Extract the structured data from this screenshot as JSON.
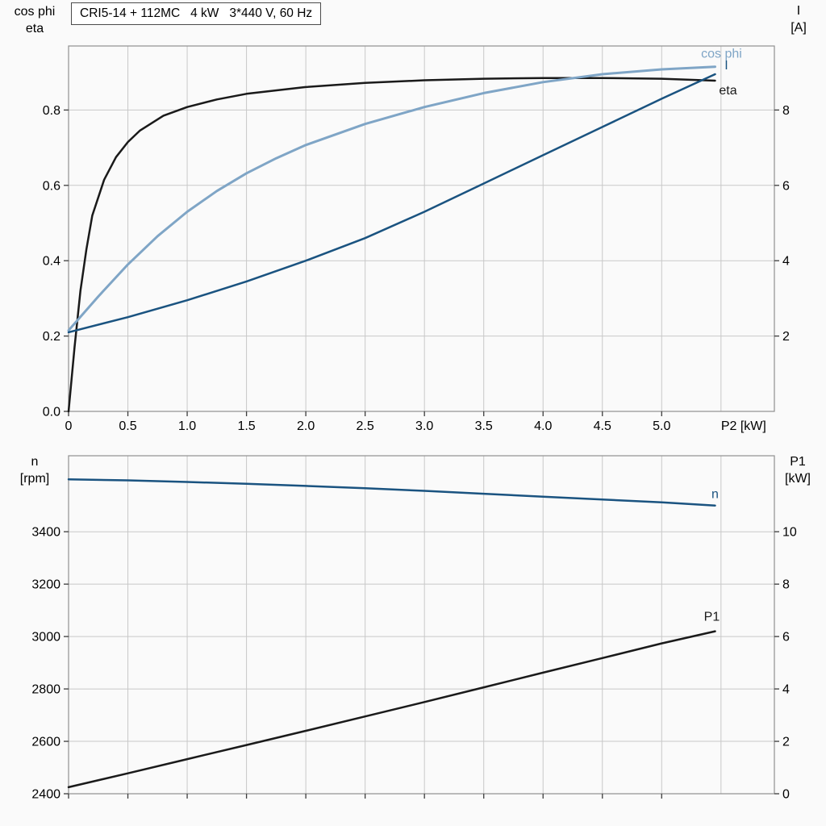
{
  "window": {
    "background": "#fafafa"
  },
  "colors": {
    "black": "#1a1a1a",
    "dark_blue": "#1a5380",
    "light_blue": "#7fa5c6",
    "grid": "#c8c8c8",
    "frame": "#8f8f8f",
    "tick": "#3c3c3c",
    "text": "#000000",
    "title_border": "#4b4b4b",
    "title_bg": "#ffffff"
  },
  "chart_data": [
    {
      "type": "line",
      "title": "CRI5-14 + 112MC   4 kW   3*440 V, 60 Hz",
      "left_axis": {
        "title_lines": [
          "cos phi",
          "eta"
        ],
        "lim": [
          0,
          0.97
        ],
        "ticks": [
          0,
          0.2,
          0.4,
          0.6,
          0.8
        ],
        "tick_labels": [
          "0.0",
          "0.2",
          "0.4",
          "0.6",
          "0.8"
        ],
        "grid_ticks": [
          0.2,
          0.4,
          0.6,
          0.8
        ]
      },
      "right_axis": {
        "title_lines": [
          "I",
          "[A]"
        ],
        "lim": [
          0,
          9.7
        ],
        "ticks": [
          2,
          4,
          6,
          8
        ],
        "tick_labels": [
          "2",
          "4",
          "6",
          "8"
        ]
      },
      "x_axis": {
        "label": "P2 [kW]",
        "lim": [
          0,
          5.95
        ],
        "ticks": [
          0,
          0.5,
          1,
          1.5,
          2,
          2.5,
          3,
          3.5,
          4,
          4.5,
          5
        ],
        "tick_labels": [
          "0",
          "0.5",
          "1.0",
          "1.5",
          "2.0",
          "2.5",
          "3.0",
          "3.5",
          "4.0",
          "4.5",
          "5.0"
        ],
        "grid_ticks": [
          0.5,
          1,
          1.5,
          2,
          2.5,
          3,
          3.5,
          4,
          4.5,
          5,
          5.5
        ],
        "label_x_value": 5.5
      },
      "grid": true,
      "legend": "curve-end-labels",
      "series": [
        {
          "name": "eta",
          "label": "eta",
          "axis": "left",
          "color": "#1a1a1a",
          "width": 2.5,
          "label_dx": 16,
          "label_dy": 17,
          "label_anchor": "middle",
          "x": [
            0,
            0.05,
            0.1,
            0.15,
            0.2,
            0.3,
            0.4,
            0.5,
            0.6,
            0.8,
            1.0,
            1.25,
            1.5,
            2.0,
            2.5,
            3.0,
            3.5,
            4.0,
            4.5,
            5.0,
            5.45
          ],
          "y": [
            0,
            0.17,
            0.32,
            0.43,
            0.52,
            0.615,
            0.675,
            0.715,
            0.745,
            0.785,
            0.808,
            0.828,
            0.843,
            0.861,
            0.872,
            0.879,
            0.883,
            0.885,
            0.885,
            0.883,
            0.878
          ]
        },
        {
          "name": "cos phi",
          "label": "cos phi",
          "axis": "left",
          "color": "#7fa5c6",
          "width": 3,
          "label_dx": 8,
          "label_dy": -11,
          "label_anchor": "middle",
          "x": [
            0,
            0.25,
            0.5,
            0.75,
            1.0,
            1.25,
            1.5,
            1.75,
            2.0,
            2.5,
            3.0,
            3.5,
            4.0,
            4.5,
            5.0,
            5.45
          ],
          "y": [
            0.215,
            0.305,
            0.39,
            0.465,
            0.53,
            0.585,
            0.632,
            0.672,
            0.707,
            0.763,
            0.808,
            0.845,
            0.874,
            0.895,
            0.908,
            0.915
          ]
        },
        {
          "name": "I",
          "label": "I",
          "axis": "right",
          "color": "#1a5380",
          "width": 2.5,
          "label_dx": 14,
          "label_dy": -6,
          "label_anchor": "middle",
          "x": [
            0,
            0.5,
            1.0,
            1.5,
            2.0,
            2.5,
            3.0,
            3.5,
            4.0,
            4.5,
            5.0,
            5.45
          ],
          "y": [
            2.1,
            2.5,
            2.95,
            3.45,
            4.0,
            4.6,
            5.3,
            6.05,
            6.8,
            7.55,
            8.3,
            8.95
          ]
        }
      ]
    },
    {
      "type": "line",
      "title": "",
      "left_axis": {
        "title_lines": [
          "n",
          "[rpm]"
        ],
        "lim": [
          2400,
          3690
        ],
        "ticks": [
          2400,
          2600,
          2800,
          3000,
          3200,
          3400
        ],
        "tick_labels": [
          "2400",
          "2600",
          "2800",
          "3000",
          "3200",
          "3400"
        ],
        "grid_ticks": [
          2600,
          2800,
          3000,
          3200,
          3400
        ]
      },
      "right_axis": {
        "title_lines": [
          "P1",
          "[kW]"
        ],
        "lim": [
          0,
          12.9
        ],
        "ticks": [
          0,
          2,
          4,
          6,
          8,
          10
        ],
        "tick_labels": [
          "0",
          "2",
          "4",
          "6",
          "8",
          "10"
        ]
      },
      "x_axis": {
        "label": "",
        "lim": [
          0,
          5.95
        ],
        "ticks": [
          0,
          0.5,
          1,
          1.5,
          2,
          2.5,
          3,
          3.5,
          4,
          4.5,
          5
        ],
        "tick_labels": [],
        "grid_ticks": [
          0.5,
          1,
          1.5,
          2,
          2.5,
          3,
          3.5,
          4,
          4.5,
          5,
          5.5
        ],
        "label_x_value": 5.5
      },
      "grid": true,
      "legend": "curve-end-labels",
      "series": [
        {
          "name": "n",
          "label": "n",
          "axis": "left",
          "color": "#1a5380",
          "width": 2.5,
          "label_dx": 0,
          "label_dy": -9,
          "label_anchor": "middle",
          "x": [
            0,
            0.5,
            1,
            1.5,
            2,
            2.5,
            3,
            3.5,
            4,
            4.5,
            5,
            5.45
          ],
          "y": [
            3600,
            3596,
            3590,
            3583,
            3575,
            3566,
            3556,
            3545,
            3534,
            3523,
            3512,
            3500
          ]
        },
        {
          "name": "P1",
          "label": "P1",
          "axis": "right",
          "color": "#1a1a1a",
          "width": 2.5,
          "label_dx": -4,
          "label_dy": -13,
          "label_anchor": "middle",
          "x": [
            0,
            0.5,
            1,
            1.5,
            2,
            2.5,
            3,
            3.5,
            4,
            4.5,
            5,
            5.45
          ],
          "y": [
            0.25,
            0.78,
            1.32,
            1.86,
            2.4,
            2.95,
            3.5,
            4.06,
            4.62,
            5.18,
            5.74,
            6.2
          ]
        }
      ]
    }
  ]
}
